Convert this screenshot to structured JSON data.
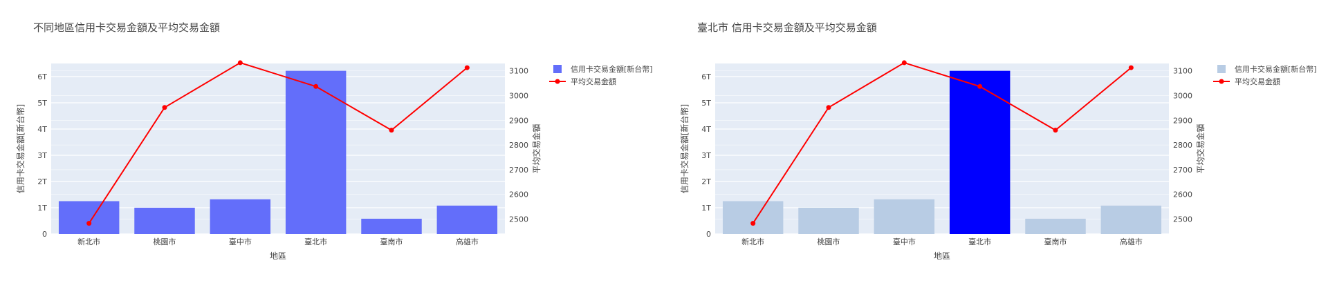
{
  "chart_data": [
    {
      "type": "bar",
      "title": "不同地區信用卡交易金額及平均交易金額",
      "xlabel": "地區",
      "ylabel": "信用卡交易金額[新台幣]",
      "y2label": "平均交易金額",
      "categories": [
        "新北市",
        "桃園市",
        "臺中市",
        "臺北市",
        "臺南市",
        "高雄市"
      ],
      "ylim": [
        0,
        6.5
      ],
      "yticks": [
        "0",
        "1T",
        "2T",
        "3T",
        "4T",
        "5T",
        "6T"
      ],
      "y2lim": [
        2440,
        3130
      ],
      "y2ticks": [
        2500,
        2600,
        2700,
        2800,
        2900,
        3000,
        3100
      ],
      "series": [
        {
          "name": "信用卡交易金額[新台幣]",
          "type": "bar",
          "axis": "y",
          "unit": "T",
          "values": [
            1.25,
            1.0,
            1.32,
            6.22,
            0.58,
            1.08
          ]
        },
        {
          "name": "平均交易金額",
          "type": "line",
          "axis": "y2",
          "values": [
            2483,
            2952,
            3133,
            3037,
            2860,
            3113
          ]
        }
      ],
      "colors": {
        "bar": "#636efa",
        "line": "#ff0000",
        "plot_bg": "#e5ecf6"
      },
      "legend": "top-right",
      "grid": true
    },
    {
      "type": "bar",
      "title": "臺北市 信用卡交易金額及平均交易金額",
      "xlabel": "地區",
      "ylabel": "信用卡交易金額[新台幣]",
      "y2label": "平均交易金額",
      "categories": [
        "新北市",
        "桃園市",
        "臺中市",
        "臺北市",
        "臺南市",
        "高雄市"
      ],
      "ylim": [
        0,
        6.5
      ],
      "yticks": [
        "0",
        "1T",
        "2T",
        "3T",
        "4T",
        "5T",
        "6T"
      ],
      "y2lim": [
        2440,
        3130
      ],
      "y2ticks": [
        2500,
        2600,
        2700,
        2800,
        2900,
        3000,
        3100
      ],
      "highlight": "臺北市",
      "series": [
        {
          "name": "信用卡交易金額[新台幣]",
          "type": "bar",
          "axis": "y",
          "unit": "T",
          "values": [
            1.25,
            1.0,
            1.32,
            6.22,
            0.58,
            1.08
          ]
        },
        {
          "name": "平均交易金額",
          "type": "line",
          "axis": "y2",
          "values": [
            2483,
            2952,
            3133,
            3037,
            2860,
            3113
          ]
        }
      ],
      "colors": {
        "bar": "#b8cce4",
        "bar_highlight": "#0000ff",
        "line": "#ff0000",
        "plot_bg": "#e5ecf6"
      },
      "legend": "top-right",
      "grid": true
    }
  ]
}
